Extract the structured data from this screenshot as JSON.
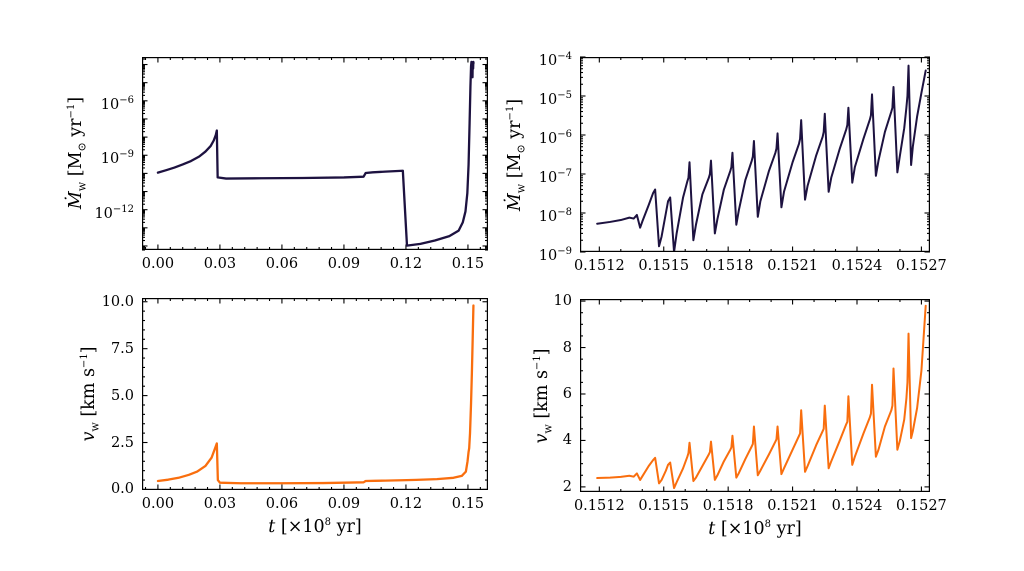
{
  "figure": {
    "background": "#ffffff",
    "axis_color": "#000000",
    "xlabel_html": "<i>t</i> [×10<sup>8</sup> yr]",
    "ylabel_mdot_html": "<i>Ṁ</i><sub>w</sub> [M<sub>⊙</sub> yr<sup>−1</sup>]",
    "ylabel_vw_html": "<i>v</i><sub>w</sub> [km s<sup>−1</sup>]"
  },
  "chart_data": [
    {
      "id": "mdot-full",
      "type": "line",
      "title": "",
      "xlabel": "t [x10^8 yr]",
      "ylabel": "Mdot_w [M_sun yr^-1]",
      "ylog": true,
      "xlim": [
        -0.0077,
        0.1597
      ],
      "ylim": [
        6e-15,
        0.00026
      ],
      "xticks": [
        0.0,
        0.03,
        0.06,
        0.09,
        0.12,
        0.15
      ],
      "xtick_labels": [
        "0.00",
        "0.03",
        "0.06",
        "0.09",
        "0.12",
        "0.15"
      ],
      "x_minor_step": 0.006,
      "ytick_values": [
        1e-06,
        1e-09,
        1e-12
      ],
      "ytick_labels": [
        "10<sup>−6</sup>",
        "10<sup>−9</sup>",
        "10<sup>−12</sup>"
      ],
      "line_color": "#1d1240",
      "line_width": 2.3,
      "points": [
        [
          0.0,
          1.1e-10
        ],
        [
          0.004,
          1.5e-10
        ],
        [
          0.008,
          2.1e-10
        ],
        [
          0.012,
          3.1e-10
        ],
        [
          0.016,
          4.8e-10
        ],
        [
          0.02,
          8.5e-10
        ],
        [
          0.023,
          1.6e-09
        ],
        [
          0.0255,
          3.2e-09
        ],
        [
          0.027,
          6.5e-09
        ],
        [
          0.028,
          1.3e-08
        ],
        [
          0.0285,
          2.3e-08
        ],
        [
          0.0289,
          6e-11
        ],
        [
          0.033,
          5.2e-11
        ],
        [
          0.05,
          5.4e-11
        ],
        [
          0.07,
          5.6e-11
        ],
        [
          0.09,
          6e-11
        ],
        [
          0.0995,
          6.6e-11
        ],
        [
          0.1005,
          1.05e-10
        ],
        [
          0.104,
          1.15e-10
        ],
        [
          0.11,
          1.25e-10
        ],
        [
          0.1185,
          1.4e-10
        ],
        [
          0.1205,
          1.05e-14
        ],
        [
          0.127,
          1.3e-14
        ],
        [
          0.134,
          2e-14
        ],
        [
          0.141,
          3.5e-14
        ],
        [
          0.1455,
          7e-14
        ],
        [
          0.1475,
          2e-13
        ],
        [
          0.1488,
          8e-13
        ],
        [
          0.1497,
          8e-12
        ],
        [
          0.1503,
          3e-10
        ],
        [
          0.1508,
          6e-08
        ],
        [
          0.1512,
          6e-06
        ],
        [
          0.1515,
          8e-05
        ],
        [
          0.1517,
          0.00014
        ],
        [
          0.1519,
          0.00011
        ],
        [
          0.152,
          3e-05
        ],
        [
          0.1521,
          0.0001
        ],
        [
          0.1522,
          2e-05
        ],
        [
          0.1523,
          0.00013
        ],
        [
          0.1525,
          6e-05
        ],
        [
          0.1526,
          0.00014
        ],
        [
          0.1527,
          0.00012
        ]
      ]
    },
    {
      "id": "mdot-zoom",
      "type": "line",
      "title": "",
      "xlabel": "t [x10^8 yr]",
      "ylabel": "Mdot_w [M_sun yr^-1]",
      "ylog": true,
      "xlim": [
        0.15111,
        0.15274
      ],
      "ylim": [
        1e-09,
        0.0001
      ],
      "xticks": [
        0.1512,
        0.1515,
        0.1518,
        0.1521,
        0.1524,
        0.1527
      ],
      "xtick_labels": [
        "0.1512",
        "0.1515",
        "0.1518",
        "0.1521",
        "0.1524",
        "0.1527"
      ],
      "x_minor_step": 0.0001,
      "ytick_values": [
        0.0001,
        1e-05,
        1e-06,
        1e-07,
        1e-08,
        1e-09
      ],
      "ytick_labels": [
        "10<sup>−4</sup>",
        "10<sup>−5</sup>",
        "10<sup>−6</sup>",
        "10<sup>−7</sup>",
        "10<sup>−8</sup>",
        "10<sup>−9</sup>"
      ],
      "line_color": "#1d1240",
      "line_width": 2.0,
      "points": [
        [
          0.15119,
          5.3e-09
        ],
        [
          0.15125,
          5.9e-09
        ],
        [
          0.1513,
          6.6e-09
        ],
        [
          0.15134,
          7.6e-09
        ],
        [
          0.15136,
          7.2e-09
        ],
        [
          0.151375,
          8.9e-09
        ],
        [
          0.15139,
          4.2e-09
        ],
        [
          0.1514,
          6e-09
        ],
        [
          0.15143,
          1.6e-08
        ],
        [
          0.15145,
          3.2e-08
        ],
        [
          0.15146,
          4e-08
        ],
        [
          0.151478,
          1.4e-09
        ],
        [
          0.15149,
          2.5e-09
        ],
        [
          0.15151,
          1e-08
        ],
        [
          0.15152,
          2e-08
        ],
        [
          0.15153,
          2.5e-08
        ],
        [
          0.151548,
          1e-09
        ],
        [
          0.15156,
          3e-09
        ],
        [
          0.15159,
          2.5e-08
        ],
        [
          0.15161,
          6.5e-08
        ],
        [
          0.151615,
          8e-08
        ],
        [
          0.15162,
          2e-07
        ],
        [
          0.151638,
          2e-09
        ],
        [
          0.15165,
          5e-09
        ],
        [
          0.15168,
          3e-08
        ],
        [
          0.15171,
          8e-08
        ],
        [
          0.151715,
          1e-07
        ],
        [
          0.15172,
          2.2e-07
        ],
        [
          0.151738,
          3e-09
        ],
        [
          0.15175,
          7e-09
        ],
        [
          0.15178,
          4e-08
        ],
        [
          0.15181,
          1.2e-07
        ],
        [
          0.151815,
          1.5e-07
        ],
        [
          0.15182,
          3.5e-07
        ],
        [
          0.151838,
          5e-09
        ],
        [
          0.15185,
          1.2e-08
        ],
        [
          0.15188,
          7e-08
        ],
        [
          0.15191,
          2.2e-07
        ],
        [
          0.151915,
          2.8e-07
        ],
        [
          0.15192,
          7e-07
        ],
        [
          0.151938,
          8e-09
        ],
        [
          0.15195,
          2e-08
        ],
        [
          0.15199,
          1.2e-07
        ],
        [
          0.15202,
          3.5e-07
        ],
        [
          0.152025,
          4.5e-07
        ],
        [
          0.15203,
          1.1e-06
        ],
        [
          0.152048,
          1.4e-08
        ],
        [
          0.15206,
          3.5e-08
        ],
        [
          0.1521,
          2e-07
        ],
        [
          0.15213,
          6e-07
        ],
        [
          0.152135,
          8e-07
        ],
        [
          0.15214,
          2.4e-06
        ],
        [
          0.152158,
          2.2e-08
        ],
        [
          0.15217,
          5e-08
        ],
        [
          0.15221,
          3e-07
        ],
        [
          0.15224,
          9e-07
        ],
        [
          0.152245,
          1.2e-06
        ],
        [
          0.15225,
          3.5e-06
        ],
        [
          0.152268,
          3.5e-08
        ],
        [
          0.15228,
          8e-08
        ],
        [
          0.15232,
          4.5e-07
        ],
        [
          0.15235,
          1.4e-06
        ],
        [
          0.152355,
          1.8e-06
        ],
        [
          0.15236,
          5e-06
        ],
        [
          0.152378,
          6e-08
        ],
        [
          0.15239,
          1.5e-07
        ],
        [
          0.15243,
          8e-07
        ],
        [
          0.15246,
          2.5e-06
        ],
        [
          0.152465,
          3.2e-06
        ],
        [
          0.15247,
          1.1e-05
        ],
        [
          0.152488,
          9e-08
        ],
        [
          0.1525,
          2.2e-07
        ],
        [
          0.15253,
          1.2e-06
        ],
        [
          0.15256,
          4e-06
        ],
        [
          0.152565,
          5e-06
        ],
        [
          0.15257,
          1.7e-05
        ],
        [
          0.152588,
          1.1e-07
        ],
        [
          0.1526,
          3e-07
        ],
        [
          0.15262,
          1.5e-06
        ],
        [
          0.15263,
          5e-06
        ],
        [
          0.152635,
          1e-05
        ],
        [
          0.15264,
          6e-05
        ],
        [
          0.152652,
          1.7e-07
        ],
        [
          0.15266,
          5e-07
        ],
        [
          0.15268,
          3e-06
        ],
        [
          0.1527,
          1.2e-05
        ],
        [
          0.15272,
          4.5e-05
        ]
      ]
    },
    {
      "id": "vw-full",
      "type": "line",
      "title": "",
      "xlabel": "t [x10^8 yr]",
      "ylabel": "v_w [km s^-1]",
      "ylog": false,
      "xlim": [
        -0.0077,
        0.1597
      ],
      "ylim": [
        -0.03,
        10.2
      ],
      "xticks": [
        0.0,
        0.03,
        0.06,
        0.09,
        0.12,
        0.15
      ],
      "xtick_labels": [
        "0.00",
        "0.03",
        "0.06",
        "0.09",
        "0.12",
        "0.15"
      ],
      "x_minor_step": 0.006,
      "ytick_values": [
        0,
        2.5,
        5,
        7.5,
        10
      ],
      "ytick_labels": [
        "0.0",
        "2.5",
        "5.0",
        "7.5",
        "10.0"
      ],
      "y_minor_step": 0.5,
      "line_color": "#f96e0e",
      "line_width": 2.3,
      "points": [
        [
          0.0,
          0.45
        ],
        [
          0.005,
          0.52
        ],
        [
          0.01,
          0.62
        ],
        [
          0.015,
          0.78
        ],
        [
          0.019,
          0.95
        ],
        [
          0.023,
          1.25
        ],
        [
          0.026,
          1.7
        ],
        [
          0.028,
          2.3
        ],
        [
          0.0285,
          2.45
        ],
        [
          0.029,
          0.5
        ],
        [
          0.03,
          0.36
        ],
        [
          0.04,
          0.33
        ],
        [
          0.06,
          0.33
        ],
        [
          0.08,
          0.34
        ],
        [
          0.0995,
          0.38
        ],
        [
          0.1005,
          0.45
        ],
        [
          0.105,
          0.46
        ],
        [
          0.11,
          0.47
        ],
        [
          0.118,
          0.49
        ],
        [
          0.125,
          0.51
        ],
        [
          0.135,
          0.55
        ],
        [
          0.143,
          0.62
        ],
        [
          0.147,
          0.72
        ],
        [
          0.149,
          0.95
        ],
        [
          0.1498,
          1.5
        ],
        [
          0.1503,
          2.0
        ],
        [
          0.1506,
          2.2
        ],
        [
          0.151,
          3.0
        ],
        [
          0.1515,
          4.6
        ],
        [
          0.1519,
          6.2
        ],
        [
          0.1522,
          7.6
        ],
        [
          0.15265,
          9.8
        ]
      ]
    },
    {
      "id": "vw-zoom",
      "type": "line",
      "title": "",
      "xlabel": "t [x10^8 yr]",
      "ylabel": "v_w [km s^-1]",
      "ylog": false,
      "xlim": [
        0.15111,
        0.15274
      ],
      "ylim": [
        1.78,
        10.09
      ],
      "xticks": [
        0.1512,
        0.1515,
        0.1518,
        0.1521,
        0.1524,
        0.1527
      ],
      "xtick_labels": [
        "0.1512",
        "0.1515",
        "0.1518",
        "0.1521",
        "0.1524",
        "0.1527"
      ],
      "x_minor_step": 0.0001,
      "ytick_values": [
        2,
        4,
        6,
        8,
        10
      ],
      "ytick_labels": [
        "2",
        "4",
        "6",
        "8",
        "10"
      ],
      "y_minor_step": 0.5,
      "line_color": "#f96e0e",
      "line_width": 2.0,
      "points": [
        [
          0.15119,
          2.38
        ],
        [
          0.15125,
          2.4
        ],
        [
          0.1513,
          2.43
        ],
        [
          0.15134,
          2.48
        ],
        [
          0.15136,
          2.44
        ],
        [
          0.151375,
          2.58
        ],
        [
          0.15139,
          2.3
        ],
        [
          0.1514,
          2.45
        ],
        [
          0.15143,
          2.9
        ],
        [
          0.15145,
          3.15
        ],
        [
          0.15146,
          3.25
        ],
        [
          0.151478,
          2.15
        ],
        [
          0.15149,
          2.3
        ],
        [
          0.15151,
          2.7
        ],
        [
          0.15152,
          2.95
        ],
        [
          0.15153,
          3.05
        ],
        [
          0.151548,
          1.95
        ],
        [
          0.15156,
          2.2
        ],
        [
          0.15159,
          2.8
        ],
        [
          0.15161,
          3.3
        ],
        [
          0.151615,
          3.45
        ],
        [
          0.15162,
          3.9
        ],
        [
          0.151638,
          2.25
        ],
        [
          0.15165,
          2.4
        ],
        [
          0.15168,
          2.9
        ],
        [
          0.15171,
          3.4
        ],
        [
          0.151715,
          3.5
        ],
        [
          0.15172,
          3.95
        ],
        [
          0.151738,
          2.3
        ],
        [
          0.15175,
          2.5
        ],
        [
          0.15178,
          3.1
        ],
        [
          0.15181,
          3.6
        ],
        [
          0.151815,
          3.7
        ],
        [
          0.15182,
          4.2
        ],
        [
          0.151838,
          2.4
        ],
        [
          0.15185,
          2.6
        ],
        [
          0.15188,
          3.2
        ],
        [
          0.15191,
          3.75
        ],
        [
          0.151915,
          3.85
        ],
        [
          0.15192,
          4.6
        ],
        [
          0.151938,
          2.5
        ],
        [
          0.15195,
          2.7
        ],
        [
          0.15199,
          3.4
        ],
        [
          0.15202,
          3.95
        ],
        [
          0.152025,
          4.05
        ],
        [
          0.15203,
          4.6
        ],
        [
          0.152048,
          2.55
        ],
        [
          0.15206,
          2.8
        ],
        [
          0.1521,
          3.6
        ],
        [
          0.15213,
          4.2
        ],
        [
          0.152135,
          4.3
        ],
        [
          0.15214,
          5.3
        ],
        [
          0.152158,
          2.65
        ],
        [
          0.15217,
          2.9
        ],
        [
          0.15221,
          3.8
        ],
        [
          0.15224,
          4.4
        ],
        [
          0.152245,
          4.5
        ],
        [
          0.15225,
          5.5
        ],
        [
          0.152268,
          2.8
        ],
        [
          0.15228,
          3.1
        ],
        [
          0.15232,
          4.0
        ],
        [
          0.15235,
          4.7
        ],
        [
          0.152355,
          4.8
        ],
        [
          0.15236,
          5.9
        ],
        [
          0.152378,
          2.95
        ],
        [
          0.15239,
          3.3
        ],
        [
          0.15243,
          4.3
        ],
        [
          0.15246,
          5.0
        ],
        [
          0.152465,
          5.15
        ],
        [
          0.15247,
          6.4
        ],
        [
          0.152488,
          3.3
        ],
        [
          0.1525,
          3.6
        ],
        [
          0.15253,
          4.6
        ],
        [
          0.15256,
          5.3
        ],
        [
          0.152565,
          5.5
        ],
        [
          0.15257,
          7.1
        ],
        [
          0.152588,
          3.6
        ],
        [
          0.1526,
          4.0
        ],
        [
          0.15262,
          4.9
        ],
        [
          0.15263,
          5.8
        ],
        [
          0.152635,
          6.5
        ],
        [
          0.15264,
          8.6
        ],
        [
          0.152652,
          4.1
        ],
        [
          0.15266,
          4.4
        ],
        [
          0.15268,
          5.4
        ],
        [
          0.1527,
          7.0
        ],
        [
          0.15272,
          9.8
        ]
      ]
    }
  ]
}
